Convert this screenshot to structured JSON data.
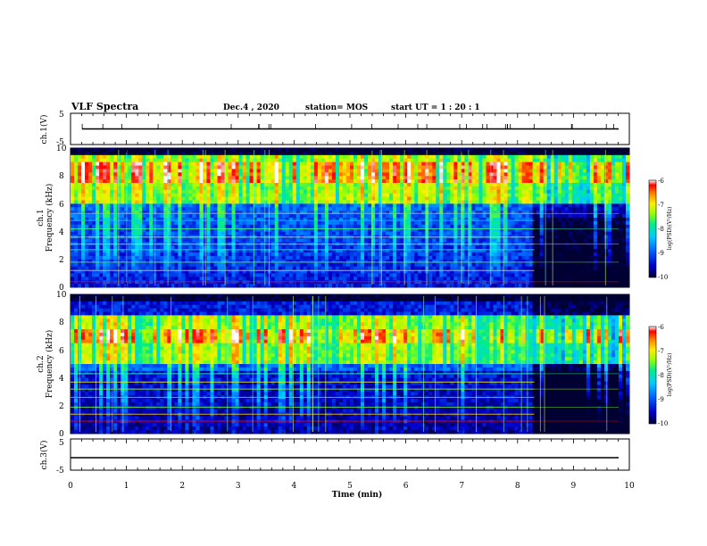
{
  "header": {
    "title": "VLF Spectra",
    "date": "Dec.4 , 2020",
    "station": "station= MOS",
    "start": "start UT =  1 : 20 : 1"
  },
  "colors": {
    "colormap": [
      "#000033",
      "#0000cc",
      "#0066ff",
      "#00ccff",
      "#00ee88",
      "#99ff00",
      "#ffee00",
      "#ff8800",
      "#ff0000",
      "#ffffff"
    ],
    "trace": "#000000",
    "axes": "#000000"
  },
  "chart_data": [
    {
      "type": "line",
      "panel": "ch1-waveform",
      "ylabel": "ch.1(V)",
      "ylim": [
        -5,
        5
      ],
      "yticks": [
        "5",
        "-5"
      ],
      "x": [
        0,
        10
      ],
      "y": [
        0,
        0
      ]
    },
    {
      "type": "heatmap",
      "panel": "ch1-spectrogram",
      "ylabel": "ch.1\nFrequency (kHz)",
      "ylim": [
        0,
        10
      ],
      "yticks": [
        "0",
        "2",
        "4",
        "6",
        "8",
        "10"
      ],
      "colorbar": {
        "label": "log(PSD)(V²/Hz)",
        "range": [
          -10,
          -6
        ],
        "ticks": [
          "-6",
          "-7",
          "-8",
          "-9",
          "-10"
        ]
      },
      "features": {
        "broadband_band_khz": [
          6,
          9
        ],
        "intense_band_khz": [
          7.5,
          9
        ],
        "regime_change_min": 8.3
      }
    },
    {
      "type": "heatmap",
      "panel": "ch2-spectrogram",
      "ylabel": "ch.2\nFrequency (kHz)",
      "ylim": [
        0,
        10
      ],
      "yticks": [
        "0",
        "2",
        "4",
        "6",
        "8",
        "10"
      ],
      "colorbar": {
        "label": "log(PSD)(V²/Hz)",
        "range": [
          -10,
          -6
        ],
        "ticks": [
          "-6",
          "-7",
          "-8",
          "-9",
          "-10"
        ]
      },
      "features": {
        "broadband_band_khz": [
          5,
          8
        ],
        "intense_band_khz": [
          6.5,
          7.5
        ],
        "regime_change_min": 8.3
      }
    },
    {
      "type": "line",
      "panel": "ch3-waveform",
      "ylabel": "ch.3(V)",
      "ylim": [
        -5,
        5
      ],
      "yticks": [
        "5",
        "-5"
      ],
      "x": [
        0,
        10
      ],
      "y": [
        -1,
        -1
      ]
    }
  ],
  "xaxis": {
    "label": "Time (min)",
    "xlim": [
      0,
      10
    ],
    "ticks": [
      "0",
      "1",
      "2",
      "3",
      "4",
      "5",
      "6",
      "7",
      "8",
      "9",
      "10"
    ]
  }
}
